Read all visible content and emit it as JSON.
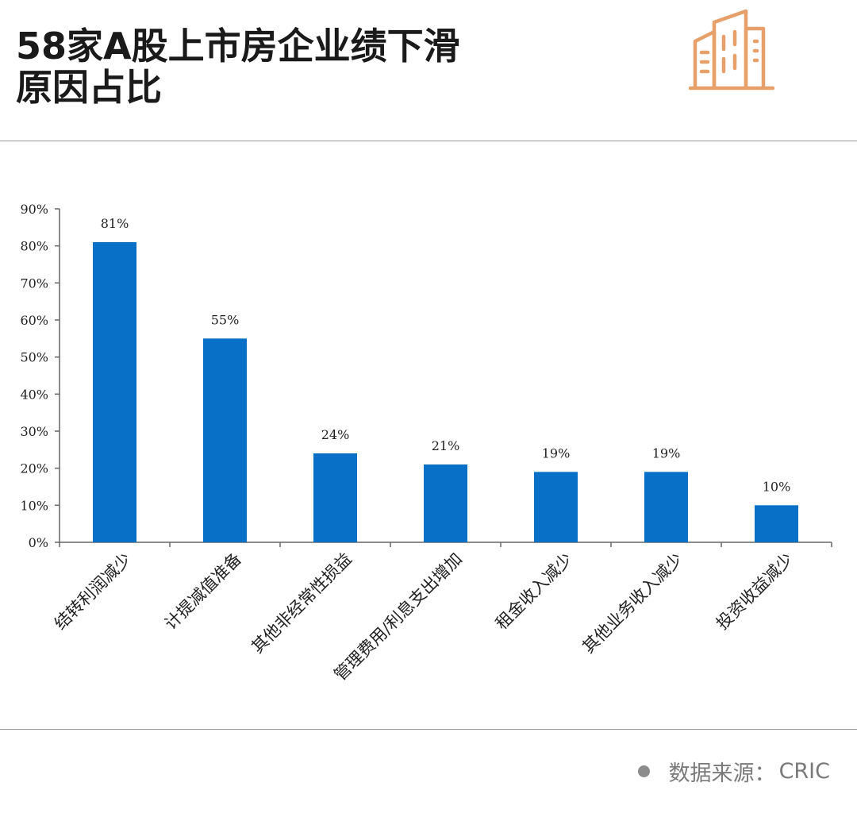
{
  "header": {
    "title_line1": "58家A股上市房企业绩下滑",
    "title_line2": "原因占比",
    "logo_icon": "buildings-icon",
    "accent_color": "#E8A06B"
  },
  "chart_data": {
    "type": "bar",
    "categories": [
      "结转利润减少",
      "计提减值准备",
      "其他非经常性损益",
      "管理费用/利息支出增加",
      "租金收入减少",
      "其他业务收入减少",
      "投资收益减少"
    ],
    "values": [
      81,
      55,
      24,
      21,
      19,
      19,
      10
    ],
    "data_labels": [
      "81%",
      "55%",
      "24%",
      "21%",
      "19%",
      "19%",
      "10%"
    ],
    "y_ticks": [
      "0%",
      "10%",
      "20%",
      "30%",
      "40%",
      "50%",
      "60%",
      "70%",
      "80%",
      "90%"
    ],
    "ylim": [
      0,
      90
    ],
    "grid": false,
    "bar_color": "#0870C6",
    "title": "",
    "xlabel": "",
    "ylabel": ""
  },
  "footer": {
    "source_label": "数据来源：",
    "source_value": "CRIC"
  }
}
